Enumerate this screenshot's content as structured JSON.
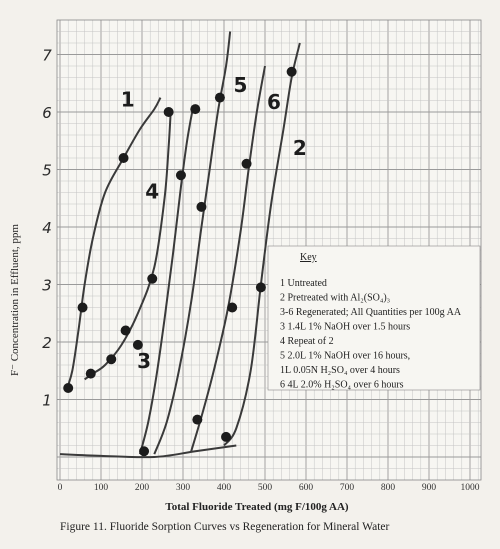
{
  "chart_data": {
    "type": "line",
    "caption": "Figure 11. Fluoride Sorption Curves vs Regeneration for Mineral Water",
    "xlabel": "Total Fluoride Treated (mg F/100g AA)",
    "ylabel": "F⁻ Concentration in Effluent, ppm",
    "x_ticks": [
      "0",
      "100",
      "200",
      "300",
      "400",
      "500",
      "600",
      "700",
      "800",
      "900",
      "1000"
    ],
    "y_ticks": [
      "1",
      "2",
      "3",
      "4",
      "5",
      "6",
      "7"
    ],
    "xlim": [
      0,
      1000
    ],
    "ylim": [
      0,
      7
    ],
    "grid": true,
    "legend_position": "right",
    "key": {
      "title": "Key",
      "lines": [
        "1  Untreated",
        "2  Pretreated with Al₂(SO₄)₃",
        "3-6  Regenerated;  All Quantities per 100g AA",
        "3  1.4L 1% NaOH over 1.5 hours",
        "4  Repeat of 2",
        "5  2.0L 1% NaOH over 16 hours,",
        "    1L 0.05N H₂SO₄ over 4 hours",
        "6  4L 2.0% H₂SO₄ over 6 hours"
      ]
    },
    "series": [
      {
        "name": "1",
        "label_pos": [
          165,
          6.1
        ],
        "color": "#3a3a3a",
        "points": [
          [
            20,
            1.2
          ],
          [
            55,
            2.6
          ],
          [
            155,
            5.2
          ]
        ],
        "curve": [
          [
            15,
            1.15
          ],
          [
            30,
            1.5
          ],
          [
            45,
            2.2
          ],
          [
            60,
            3.0
          ],
          [
            80,
            3.8
          ],
          [
            110,
            4.6
          ],
          [
            155,
            5.2
          ],
          [
            195,
            5.7
          ],
          [
            230,
            6.05
          ],
          [
            245,
            6.25
          ]
        ]
      },
      {
        "name": "4",
        "label_pos": [
          225,
          4.5
        ],
        "color": "#3a3a3a",
        "points": [
          [
            75,
            1.45
          ],
          [
            125,
            1.7
          ],
          [
            160,
            2.2
          ],
          [
            225,
            3.1
          ],
          [
            190,
            1.95
          ],
          [
            265,
            6.0
          ]
        ],
        "curve": [
          [
            60,
            1.35
          ],
          [
            80,
            1.45
          ],
          [
            110,
            1.6
          ],
          [
            150,
            1.95
          ],
          [
            190,
            2.5
          ],
          [
            230,
            3.3
          ],
          [
            255,
            4.5
          ],
          [
            265,
            5.4
          ],
          [
            270,
            6.0
          ]
        ]
      },
      {
        "name": "3",
        "label_pos": [
          205,
          1.55
        ],
        "color": "#3a3a3a",
        "points": [
          [
            205,
            0.1
          ],
          [
            295,
            4.9
          ],
          [
            330,
            6.05
          ]
        ],
        "curve": [
          [
            195,
            0.05
          ],
          [
            215,
            0.6
          ],
          [
            235,
            1.4
          ],
          [
            255,
            2.4
          ],
          [
            275,
            3.5
          ],
          [
            295,
            4.7
          ],
          [
            310,
            5.5
          ],
          [
            325,
            6.1
          ]
        ]
      },
      {
        "name": "5",
        "label_pos": [
          440,
          6.35
        ],
        "color": "#3a3a3a",
        "points": [
          [
            345,
            4.35
          ],
          [
            390,
            6.25
          ]
        ],
        "curve": [
          [
            230,
            0.05
          ],
          [
            260,
            0.6
          ],
          [
            290,
            1.5
          ],
          [
            320,
            2.7
          ],
          [
            345,
            4.0
          ],
          [
            365,
            5.0
          ],
          [
            385,
            6.0
          ],
          [
            405,
            6.8
          ],
          [
            415,
            7.4
          ]
        ]
      },
      {
        "name": "6",
        "label_pos": [
          522,
          6.05
        ],
        "color": "#3a3a3a",
        "points": [
          [
            335,
            0.65
          ],
          [
            420,
            2.6
          ],
          [
            455,
            5.1
          ]
        ],
        "curve": [
          [
            320,
            0.1
          ],
          [
            345,
            0.7
          ],
          [
            375,
            1.5
          ],
          [
            410,
            2.6
          ],
          [
            440,
            3.9
          ],
          [
            460,
            5.0
          ],
          [
            480,
            6.0
          ],
          [
            500,
            6.8
          ]
        ]
      },
      {
        "name": "2",
        "label_pos": [
          585,
          5.25
        ],
        "color": "#3a3a3a",
        "points": [
          [
            405,
            0.35
          ],
          [
            490,
            2.95
          ],
          [
            565,
            6.7
          ]
        ],
        "curve": [
          [
            400,
            0.2
          ],
          [
            430,
            0.5
          ],
          [
            465,
            1.5
          ],
          [
            490,
            3.0
          ],
          [
            515,
            4.4
          ],
          [
            545,
            5.7
          ],
          [
            565,
            6.6
          ],
          [
            585,
            7.2
          ]
        ]
      }
    ],
    "baseline": [
      [
        0,
        0.05
      ],
      [
        100,
        0.02
      ],
      [
        230,
        0.0
      ],
      [
        330,
        0.1
      ],
      [
        430,
        0.2
      ]
    ]
  }
}
